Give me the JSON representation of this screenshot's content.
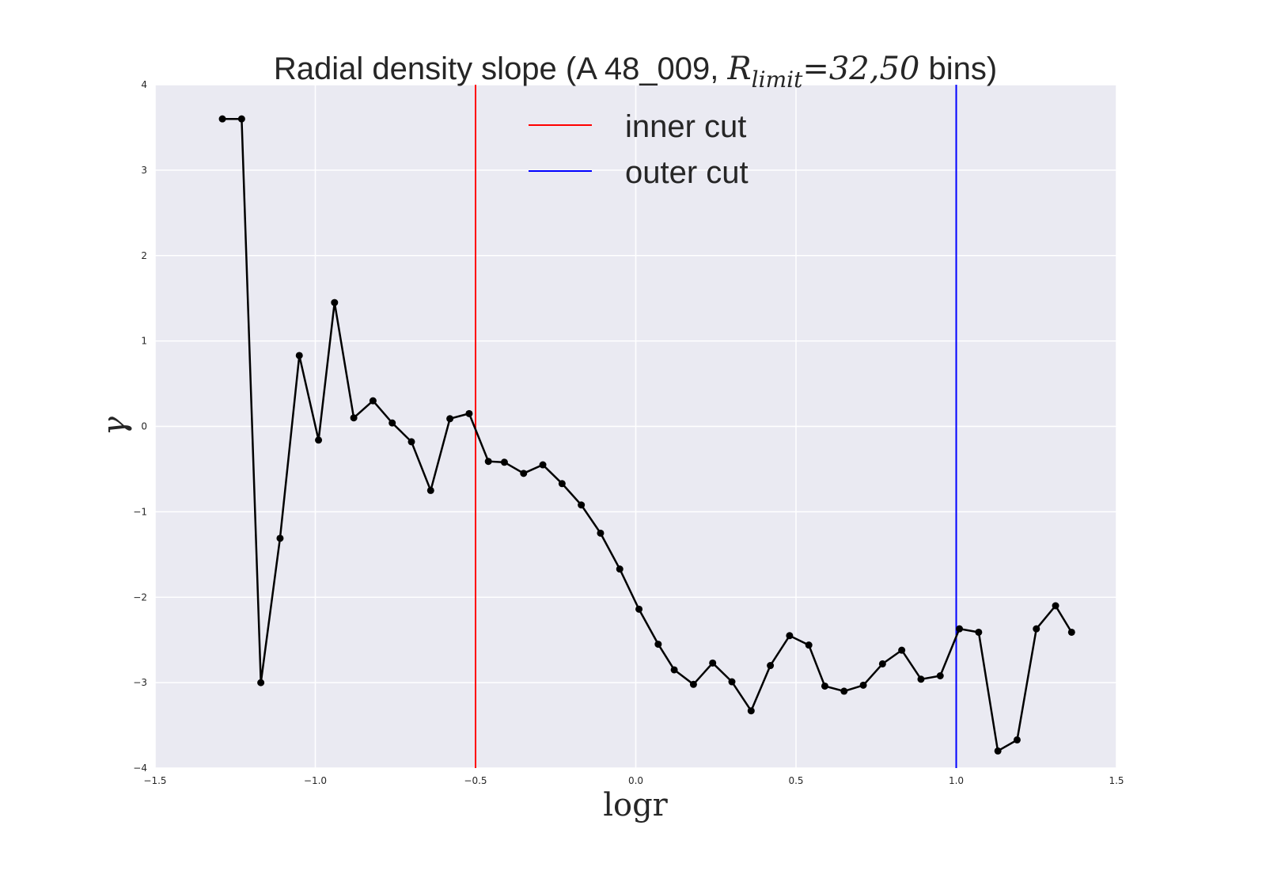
{
  "chart_data": {
    "type": "line",
    "title": {
      "prefix": "Radial density slope (A 48_009, ",
      "math_main": "R",
      "math_sub": "limit",
      "math_rest": "=32,50",
      "suffix": " bins)"
    },
    "xlabel": "logr",
    "ylabel": "γ",
    "xlim": [
      -1.5,
      1.5
    ],
    "ylim": [
      -4,
      4
    ],
    "xticks": [
      -1.5,
      -1.0,
      -0.5,
      0.0,
      0.5,
      1.0,
      1.5
    ],
    "xtick_labels": [
      "−1.5",
      "−1.0",
      "−0.5",
      "0.0",
      "0.5",
      "1.0",
      "1.5"
    ],
    "yticks": [
      -4,
      -3,
      -2,
      -1,
      0,
      1,
      2,
      3,
      4
    ],
    "ytick_labels": [
      "−4",
      "−3",
      "−2",
      "−1",
      "0",
      "1",
      "2",
      "3",
      "4"
    ],
    "grid": true,
    "legend_position": "top-center",
    "vlines": [
      {
        "name": "inner cut",
        "x": -0.5,
        "color": "#ff0000"
      },
      {
        "name": "outer cut",
        "x": 1.0,
        "color": "#0000ff"
      }
    ],
    "series": [
      {
        "color": "#000000",
        "x": [
          -1.29,
          -1.23,
          -1.17,
          -1.11,
          -1.05,
          -0.99,
          -0.94,
          -0.88,
          -0.82,
          -0.76,
          -0.7,
          -0.64,
          -0.58,
          -0.52,
          -0.46,
          -0.41,
          -0.35,
          -0.29,
          -0.23,
          -0.17,
          -0.11,
          -0.05,
          0.01,
          0.07,
          0.12,
          0.18,
          0.24,
          0.3,
          0.36,
          0.42,
          0.48,
          0.54,
          0.59,
          0.65,
          0.71,
          0.77,
          0.83,
          0.89,
          0.95,
          1.01,
          1.07,
          1.13,
          1.19,
          1.25,
          1.31,
          1.36
        ],
        "y": [
          3.6,
          3.6,
          -3.0,
          -1.31,
          0.83,
          -0.16,
          1.45,
          0.1,
          0.3,
          0.04,
          -0.18,
          -0.75,
          0.09,
          0.15,
          -0.41,
          -0.42,
          -0.55,
          -0.45,
          -0.67,
          -0.92,
          -1.25,
          -1.67,
          -2.14,
          -2.55,
          -2.85,
          -3.02,
          -2.77,
          -2.99,
          -3.33,
          -2.8,
          -2.45,
          -2.56,
          -3.04,
          -3.1,
          -3.03,
          -2.78,
          -2.62,
          -2.96,
          -2.92,
          -2.37,
          -2.41,
          -3.8,
          -3.67,
          -2.37,
          -2.1,
          -2.41
        ]
      }
    ]
  }
}
